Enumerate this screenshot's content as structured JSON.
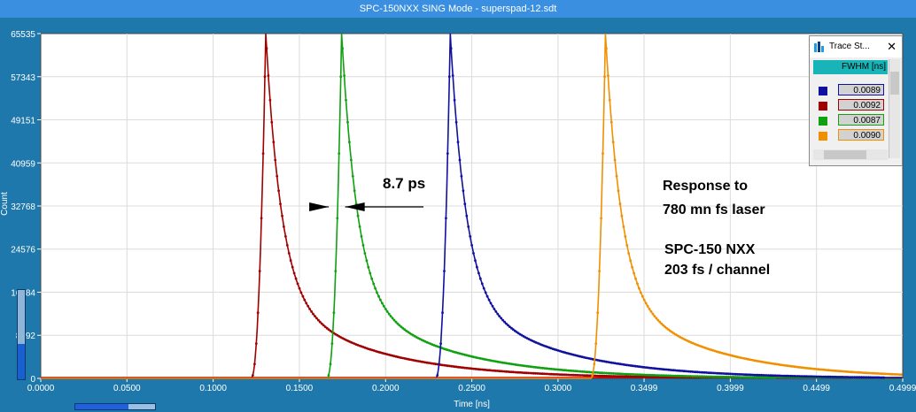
{
  "window": {
    "title": "SPC-150NXX  SING Mode - superspad-12.sdt"
  },
  "chart_data": {
    "type": "line",
    "xlabel": "Time [ns]",
    "ylabel": "Count",
    "xlim": [
      0.0,
      0.4999
    ],
    "ylim": [
      0,
      65535
    ],
    "x_ticks": [
      "0.0000",
      "0.0500",
      "0.1000",
      "0.1500",
      "0.2000",
      "0.2500",
      "0.3000",
      "0.3499",
      "0.3999",
      "0.4499",
      "0.4999"
    ],
    "x_tick_values": [
      0.0,
      0.05,
      0.1,
      0.15,
      0.2,
      0.25,
      0.3,
      0.3499,
      0.3999,
      0.4499,
      0.4999
    ],
    "y_ticks": [
      "0",
      "8192",
      "16384",
      "24576",
      "32768",
      "40959",
      "49151",
      "57343",
      "65535"
    ],
    "y_tick_values": [
      0,
      8192,
      16384,
      24576,
      32768,
      40959,
      49151,
      57343,
      65535
    ],
    "grid": true,
    "series": [
      {
        "color": "#a00000",
        "peak_x": 0.1305,
        "peak_y": 65535,
        "onset_x": 0.122,
        "fwhm": "0.0092"
      },
      {
        "color": "#10a010",
        "peak_x": 0.1745,
        "peak_y": 65535,
        "onset_x": 0.166,
        "fwhm": "0.0087"
      },
      {
        "color": "#1010a0",
        "peak_x": 0.2375,
        "peak_y": 65535,
        "onset_x": 0.229,
        "fwhm": "0.0089"
      },
      {
        "color": "#f09000",
        "peak_x": 0.3275,
        "peak_y": 65535,
        "onset_x": 0.319,
        "fwhm": "0.0090"
      }
    ],
    "annotations": {
      "width_label": "8.7 ps",
      "response_line1": "Response to",
      "response_line2": "780 mn fs laser",
      "device_line1": "SPC-150 NXX",
      "device_line2": "203 fs / channel"
    }
  },
  "trace_panel": {
    "title": "Trace St...",
    "close_glyph": "✕",
    "column_header": "FWHM [ns]",
    "rows": [
      {
        "color": "#1010a0",
        "value": "0.0089"
      },
      {
        "color": "#a00000",
        "value": "0.0092"
      },
      {
        "color": "#10a010",
        "value": "0.0087"
      },
      {
        "color": "#f09000",
        "value": "0.0090"
      }
    ]
  },
  "icons": {
    "panel": "trace-statistics-icon",
    "close": "close-icon"
  }
}
